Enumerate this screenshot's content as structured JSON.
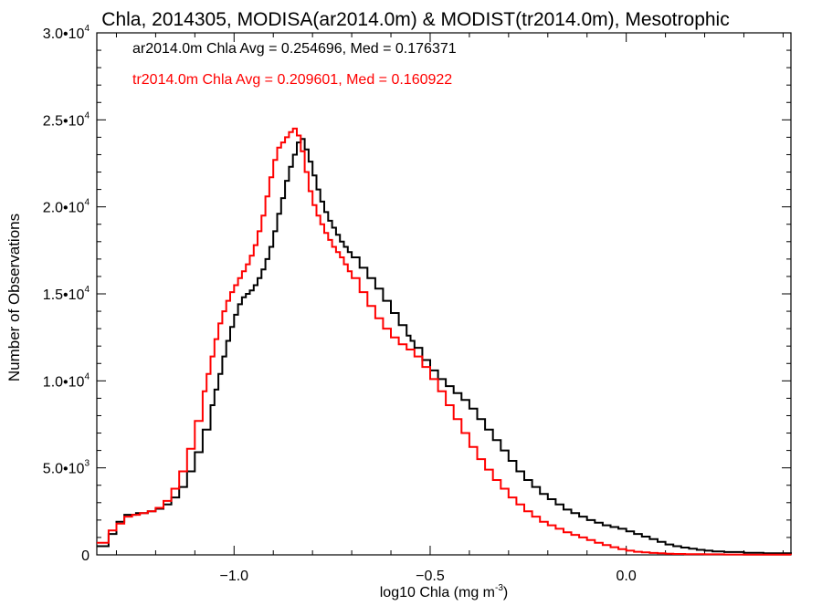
{
  "chart_data": {
    "type": "line",
    "title": "Chla, 2014305, MODISA(ar2014.0m) & MODIST(tr2014.0m), Mesotrophic",
    "xlabel": "log10 Chla (mg m",
    "xlabel_sup": "-3",
    "xlabel_end": ")",
    "ylabel": "Number of Observations",
    "xlim": [
      -1.35,
      0.42
    ],
    "ylim": [
      0,
      30000
    ],
    "xticks": [
      {
        "value": -1.0,
        "label": "−1.0"
      },
      {
        "value": -0.5,
        "label": "−0.5"
      },
      {
        "value": 0.0,
        "label": "0.0"
      }
    ],
    "yticks": [
      {
        "value": 0,
        "mant": "0",
        "exp": ""
      },
      {
        "value": 5000,
        "mant": "5.0•10",
        "exp": "3"
      },
      {
        "value": 10000,
        "mant": "1.0•10",
        "exp": "4"
      },
      {
        "value": 15000,
        "mant": "1.5•10",
        "exp": "4"
      },
      {
        "value": 20000,
        "mant": "2.0•10",
        "exp": "4"
      },
      {
        "value": 25000,
        "mant": "2.5•10",
        "exp": "4"
      },
      {
        "value": 30000,
        "mant": "3.0•10",
        "exp": "4"
      }
    ],
    "grid": false,
    "step": true,
    "annotations": [
      {
        "text": "ar2014.0m Chla Avg = 0.254696, Med = 0.176371",
        "color": "#000000"
      },
      {
        "text": "tr2014.0m Chla Avg = 0.209601, Med = 0.160922",
        "color": "#ff0000"
      }
    ],
    "series": [
      {
        "color": "#000000",
        "x": [
          -1.35,
          -1.32,
          -1.3,
          -1.28,
          -1.25,
          -1.22,
          -1.2,
          -1.18,
          -1.16,
          -1.14,
          -1.12,
          -1.1,
          -1.08,
          -1.06,
          -1.05,
          -1.04,
          -1.03,
          -1.02,
          -1.01,
          -1.0,
          -0.99,
          -0.98,
          -0.97,
          -0.96,
          -0.95,
          -0.94,
          -0.93,
          -0.92,
          -0.91,
          -0.9,
          -0.89,
          -0.88,
          -0.87,
          -0.86,
          -0.85,
          -0.84,
          -0.83,
          -0.82,
          -0.81,
          -0.8,
          -0.79,
          -0.78,
          -0.77,
          -0.76,
          -0.75,
          -0.74,
          -0.73,
          -0.72,
          -0.71,
          -0.7,
          -0.68,
          -0.66,
          -0.64,
          -0.62,
          -0.6,
          -0.58,
          -0.56,
          -0.55,
          -0.54,
          -0.52,
          -0.5,
          -0.48,
          -0.46,
          -0.44,
          -0.42,
          -0.4,
          -0.38,
          -0.36,
          -0.34,
          -0.32,
          -0.3,
          -0.28,
          -0.26,
          -0.24,
          -0.22,
          -0.2,
          -0.18,
          -0.16,
          -0.14,
          -0.12,
          -0.1,
          -0.08,
          -0.06,
          -0.04,
          -0.02,
          0.0,
          0.02,
          0.04,
          0.06,
          0.08,
          0.1,
          0.12,
          0.14,
          0.16,
          0.18,
          0.2,
          0.22,
          0.25,
          0.3,
          0.35,
          0.42
        ],
        "values": [
          500,
          1200,
          1900,
          2300,
          2400,
          2500,
          2650,
          2900,
          3300,
          3900,
          4800,
          5900,
          7200,
          8600,
          9500,
          10400,
          11400,
          12300,
          13100,
          13800,
          14400,
          14800,
          15000,
          15200,
          15500,
          15900,
          16400,
          17000,
          17700,
          18600,
          19600,
          20500,
          21500,
          22300,
          23000,
          23700,
          23900,
          23300,
          22600,
          21800,
          21000,
          20300,
          19700,
          19200,
          18800,
          18400,
          18000,
          17700,
          17400,
          17100,
          16500,
          15900,
          15300,
          14600,
          13900,
          13200,
          12600,
          12300,
          11900,
          11200,
          10600,
          10100,
          9700,
          9300,
          8900,
          8400,
          7800,
          7200,
          6600,
          6000,
          5400,
          4800,
          4300,
          3900,
          3500,
          3200,
          2900,
          2600,
          2400,
          2200,
          2000,
          1850,
          1700,
          1600,
          1500,
          1350,
          1200,
          1050,
          900,
          750,
          600,
          500,
          420,
          350,
          290,
          240,
          200,
          160,
          120,
          90,
          50
        ]
      },
      {
        "color": "#ff0000",
        "x": [
          -1.35,
          -1.32,
          -1.3,
          -1.28,
          -1.26,
          -1.24,
          -1.22,
          -1.2,
          -1.18,
          -1.16,
          -1.14,
          -1.12,
          -1.1,
          -1.08,
          -1.07,
          -1.06,
          -1.05,
          -1.04,
          -1.03,
          -1.02,
          -1.01,
          -1.0,
          -0.99,
          -0.98,
          -0.97,
          -0.96,
          -0.95,
          -0.94,
          -0.93,
          -0.92,
          -0.91,
          -0.9,
          -0.89,
          -0.88,
          -0.87,
          -0.86,
          -0.85,
          -0.84,
          -0.83,
          -0.82,
          -0.81,
          -0.8,
          -0.79,
          -0.78,
          -0.77,
          -0.76,
          -0.75,
          -0.74,
          -0.73,
          -0.72,
          -0.71,
          -0.7,
          -0.68,
          -0.66,
          -0.64,
          -0.62,
          -0.6,
          -0.58,
          -0.56,
          -0.54,
          -0.52,
          -0.5,
          -0.48,
          -0.46,
          -0.44,
          -0.42,
          -0.4,
          -0.38,
          -0.36,
          -0.34,
          -0.32,
          -0.3,
          -0.28,
          -0.26,
          -0.24,
          -0.22,
          -0.2,
          -0.18,
          -0.16,
          -0.14,
          -0.12,
          -0.1,
          -0.08,
          -0.06,
          -0.04,
          -0.02,
          0.0,
          0.02,
          0.04,
          0.06,
          0.08,
          0.1,
          0.12,
          0.15,
          0.2,
          0.25,
          0.3,
          0.35,
          0.42
        ],
        "values": [
          700,
          1400,
          1800,
          2200,
          2300,
          2400,
          2500,
          2700,
          3100,
          3800,
          4800,
          6100,
          7700,
          9400,
          10400,
          11400,
          12400,
          13300,
          14000,
          14600,
          15100,
          15500,
          15900,
          16300,
          16700,
          17200,
          17800,
          18600,
          19500,
          20600,
          21700,
          22700,
          23400,
          23700,
          24000,
          24300,
          24500,
          24100,
          23200,
          22000,
          20900,
          20100,
          19500,
          19000,
          18500,
          18100,
          17700,
          17400,
          17100,
          16700,
          16300,
          15900,
          15100,
          14300,
          13600,
          13000,
          12500,
          12100,
          11800,
          11400,
          10800,
          10100,
          9400,
          8600,
          7800,
          7000,
          6200,
          5500,
          4900,
          4300,
          3800,
          3300,
          2900,
          2500,
          2200,
          1900,
          1700,
          1500,
          1300,
          1150,
          1000,
          850,
          700,
          560,
          440,
          330,
          240,
          180,
          140,
          110,
          90,
          70,
          55,
          40,
          30,
          20,
          15,
          10,
          5
        ]
      }
    ]
  }
}
